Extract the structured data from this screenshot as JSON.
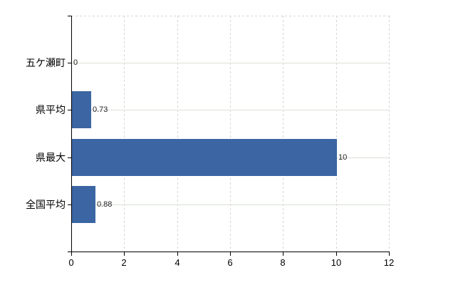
{
  "chart_data": {
    "type": "bar",
    "orientation": "horizontal",
    "title": "",
    "xlabel": "",
    "ylabel": "",
    "categories": [
      "五ケ瀬町",
      "県平均",
      "県最大",
      "全国平均"
    ],
    "values": [
      0,
      0.73,
      10,
      0.88
    ],
    "value_labels": [
      "0",
      "0.73",
      "10",
      "0.88"
    ],
    "xticks": [
      "0",
      "2",
      "4",
      "6",
      "8",
      "10",
      "12"
    ],
    "xtick_values": [
      0,
      2,
      4,
      6,
      8,
      10,
      12
    ],
    "xlim": [
      0,
      12
    ],
    "grid": "vertical dashed at every x tick, horizontal solid at every category center",
    "legend_position": "none",
    "colors": {
      "bar": "#3b66a3",
      "axis": "#000000",
      "category_label": "#000000",
      "tick_label": "#000000",
      "value_label": "#1f1f1f",
      "h_gridline": "#dbe1d7",
      "v_gridline": "#d6d6d6",
      "background": "#ffffff"
    }
  }
}
